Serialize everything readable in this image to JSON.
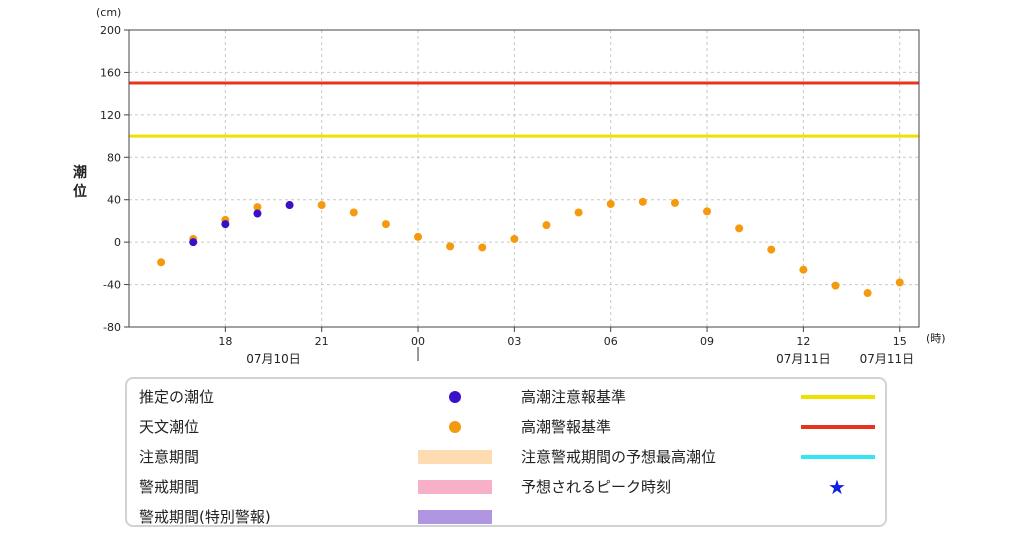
{
  "chart_data": {
    "type": "scatter",
    "y_unit": "(cm)",
    "x_unit": "(時)",
    "ylabel": "潮位",
    "ylim": [
      -80,
      200
    ],
    "yticks": [
      -80,
      -40,
      0,
      40,
      80,
      120,
      160,
      200
    ],
    "x_range_hours": [
      -9,
      15.6
    ],
    "x_ticks": [
      {
        "hour": -6,
        "label": "18"
      },
      {
        "hour": -3,
        "label": "21"
      },
      {
        "hour": 0,
        "label": "00"
      },
      {
        "hour": 3,
        "label": "03"
      },
      {
        "hour": 6,
        "label": "06"
      },
      {
        "hour": 9,
        "label": "09"
      },
      {
        "hour": 12,
        "label": "12"
      },
      {
        "hour": 15,
        "label": "15"
      }
    ],
    "date_labels": [
      {
        "hour": -4.5,
        "label": "07月10日"
      },
      {
        "hour": 12.0,
        "label": "07月11日"
      },
      {
        "hour": 14.6,
        "label": "07月11日"
      }
    ],
    "date_divider_hour": 0,
    "grid": true,
    "thresholds": [
      {
        "name": "高潮注意報基準",
        "value": 100,
        "color": "#f0e000"
      },
      {
        "name": "高潮警報基準",
        "value": 150,
        "color": "#e8341c"
      }
    ],
    "series": [
      {
        "name": "天文潮位",
        "color": "#f59a0c",
        "points": [
          [
            -8,
            -19
          ],
          [
            -7,
            3
          ],
          [
            -6,
            21
          ],
          [
            -5,
            33
          ],
          [
            -4,
            35
          ],
          [
            -3,
            35
          ],
          [
            -2,
            28
          ],
          [
            -1,
            17
          ],
          [
            0,
            5
          ],
          [
            1,
            -4
          ],
          [
            2,
            -5
          ],
          [
            3,
            3
          ],
          [
            4,
            16
          ],
          [
            5,
            28
          ],
          [
            6,
            36
          ],
          [
            7,
            38
          ],
          [
            8,
            37
          ],
          [
            9,
            29
          ],
          [
            10,
            13
          ],
          [
            11,
            -7
          ],
          [
            12,
            -26
          ],
          [
            13,
            -41
          ],
          [
            14,
            -48
          ],
          [
            15,
            -38
          ]
        ]
      },
      {
        "name": "推定の潮位",
        "color": "#3a10c8",
        "points": [
          [
            -7,
            0
          ],
          [
            -6,
            17
          ],
          [
            -5,
            27
          ],
          [
            -4,
            35
          ]
        ]
      }
    ]
  },
  "legend": {
    "left": [
      {
        "label": "推定の潮位",
        "symbol": "dot",
        "color": "#3a10c8"
      },
      {
        "label": "天文潮位",
        "symbol": "dot",
        "color": "#f59a0c"
      },
      {
        "label": "注意期間",
        "symbol": "rect",
        "color": "#fcdcb0"
      },
      {
        "label": "警戒期間",
        "symbol": "rect",
        "color": "#f7b0c8"
      },
      {
        "label": "警戒期間(特別警報)",
        "symbol": "rect",
        "color": "#b095e0"
      }
    ],
    "right": [
      {
        "label": "高潮注意報基準",
        "symbol": "line",
        "color": "#f0e000"
      },
      {
        "label": "高潮警報基準",
        "symbol": "line",
        "color": "#e8341c"
      },
      {
        "label": "注意警戒期間の予想最高潮位",
        "symbol": "line",
        "color": "#33e6f2"
      },
      {
        "label": "予想されるピーク時刻",
        "symbol": "star",
        "color": "#1020e0",
        "glyph": "★"
      }
    ]
  }
}
